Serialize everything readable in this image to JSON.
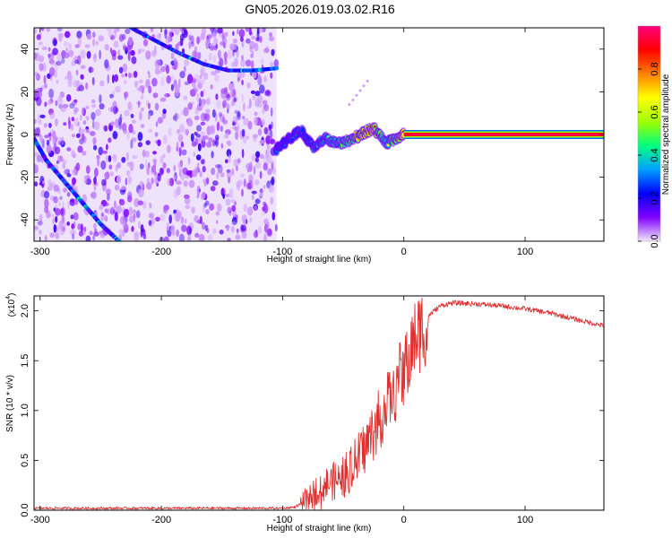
{
  "chart_data": [
    {
      "type": "heatmap",
      "title": "GN05.2026.019.03.02.R16",
      "xlabel": "Height of straight line (km)",
      "ylabel": "Frequency (Hz)",
      "xlim": [
        -305,
        165
      ],
      "ylim": [
        -50,
        50
      ],
      "xticks": [
        "-300",
        "-200",
        "-100",
        "0",
        "100"
      ],
      "yticks": [
        "-40",
        "-20",
        "0",
        "20",
        "40"
      ],
      "noise_region_x": [
        -305,
        -105
      ],
      "colorbar": {
        "label": "Normalized spectral amplitude",
        "range": [
          0.0,
          1.0
        ],
        "ticks": [
          "0.0",
          "0.2",
          "0.4",
          "0.6",
          "0.8"
        ],
        "colors": [
          "#f2e6fb",
          "#8000ff",
          "#0000ff",
          "#00a0ff",
          "#00ff80",
          "#a0ff00",
          "#ffff00",
          "#ff8000",
          "#ff0000",
          "#ff0080"
        ]
      },
      "ridge": {
        "x": [
          -105,
          -95,
          -85,
          -75,
          -65,
          -55,
          -45,
          -35,
          -25,
          -15,
          -5,
          0,
          50,
          100,
          165
        ],
        "y": [
          -7,
          -2,
          2,
          -6,
          -2,
          -4,
          -3,
          0,
          3,
          -4,
          -2,
          0,
          0,
          0,
          0
        ],
        "amplitude": [
          0.35,
          0.4,
          0.45,
          0.5,
          0.55,
          0.6,
          0.7,
          0.8,
          0.85,
          0.6,
          0.75,
          0.95,
          0.95,
          0.95,
          0.95
        ]
      },
      "streaks": [
        {
          "x": [
            -305,
            -295,
            -280,
            -265,
            -250,
            -235
          ],
          "y": [
            -2,
            -12,
            -22,
            -32,
            -42,
            -50
          ]
        },
        {
          "x": [
            -225,
            -205,
            -185,
            -165,
            -145,
            -125,
            -105
          ],
          "y": [
            50,
            44,
            38,
            33,
            30,
            30,
            31
          ]
        }
      ]
    },
    {
      "type": "line",
      "xlabel": "Height of straight line (km)",
      "ylabel": "SNR (10 * v/v)",
      "multiplier": "(x10",
      "multiplier_exp": "4",
      "xlim": [
        -305,
        165
      ],
      "ylim": [
        0.0,
        2.15
      ],
      "xticks": [
        "-300",
        "-200",
        "-100",
        "0",
        "100"
      ],
      "yticks": [
        "0.0",
        "0.5",
        "1.0",
        "1.5",
        "2.0"
      ],
      "color": "#e03030",
      "series": [
        {
          "name": "SNR",
          "x": [
            -305,
            -200,
            -100,
            -90,
            -80,
            -70,
            -60,
            -50,
            -40,
            -30,
            -20,
            -10,
            0,
            5,
            10,
            20,
            30,
            40,
            60,
            80,
            100,
            120,
            140,
            165
          ],
          "y": [
            0.02,
            0.02,
            0.02,
            0.03,
            0.1,
            0.25,
            0.3,
            0.35,
            0.5,
            0.7,
            0.95,
            1.2,
            1.45,
            1.6,
            1.78,
            1.95,
            2.05,
            2.08,
            2.07,
            2.05,
            2.02,
            1.98,
            1.92,
            1.85
          ]
        }
      ]
    }
  ]
}
